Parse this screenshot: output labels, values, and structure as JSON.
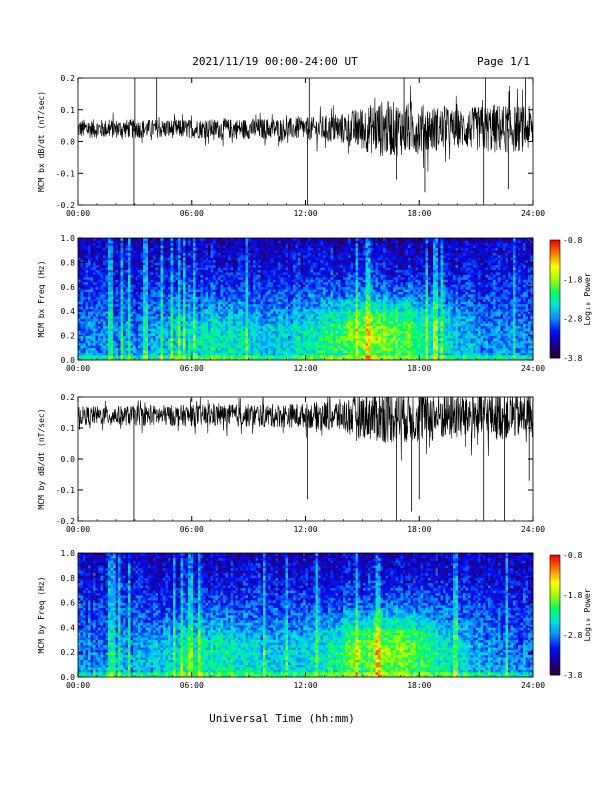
{
  "header": {
    "title": "2021/11/19  00:00-24:00 UT",
    "page": "Page 1/1"
  },
  "xlabel": "Universal Time (hh:mm)",
  "colors": {
    "trace": "#000000",
    "colormap": [
      "#2a0030",
      "#1a00a0",
      "#0010ff",
      "#0090ff",
      "#00e0e0",
      "#00ff60",
      "#a0ff00",
      "#ffff00",
      "#ff8000",
      "#ff0000"
    ]
  },
  "chart_data": [
    {
      "type": "line",
      "ylabel": "MCM bx dB/dt (nT/sec)",
      "xlim": [
        0,
        24
      ],
      "ylim": [
        -0.2,
        0.2
      ],
      "x_ticks": [
        "00:00",
        "06:00",
        "12:00",
        "18:00",
        "24:00"
      ],
      "y_ticks": [
        "0.2",
        "0.1",
        "0.0",
        "-0.1",
        "-0.2"
      ],
      "baseline": 0.04,
      "noise_envelope": [
        {
          "t": 0,
          "amp": 0.03
        },
        {
          "t": 6,
          "amp": 0.03
        },
        {
          "t": 12,
          "amp": 0.035
        },
        {
          "t": 14,
          "amp": 0.05
        },
        {
          "t": 16,
          "amp": 0.09
        },
        {
          "t": 18,
          "amp": 0.08
        },
        {
          "t": 20,
          "amp": 0.06
        },
        {
          "t": 22,
          "amp": 0.08
        },
        {
          "t": 24,
          "amp": 0.07
        }
      ],
      "spikes": [
        {
          "t": 2.95,
          "y": -0.2
        },
        {
          "t": 3.0,
          "y": 0.2
        },
        {
          "t": 4.15,
          "y": 0.2
        },
        {
          "t": 12.1,
          "y": -0.2
        },
        {
          "t": 12.2,
          "y": 0.2
        },
        {
          "t": 16.8,
          "y": -0.12
        },
        {
          "t": 17.2,
          "y": 0.2
        },
        {
          "t": 18.3,
          "y": -0.16
        },
        {
          "t": 21.4,
          "y": -0.2
        },
        {
          "t": 21.5,
          "y": 0.2
        },
        {
          "t": 22.7,
          "y": -0.15
        },
        {
          "t": 23.6,
          "y": 0.2
        }
      ]
    },
    {
      "type": "heatmap",
      "ylabel": "MCM bx Freq (Hz)",
      "xlim": [
        0,
        24
      ],
      "ylim": [
        0,
        1
      ],
      "x_ticks": [
        "00:00",
        "06:00",
        "12:00",
        "18:00",
        "24:00"
      ],
      "y_ticks": [
        "1.0",
        "0.8",
        "0.6",
        "0.4",
        "0.2",
        "0.0"
      ],
      "colorbar_label": "Log₁₀ Power",
      "colorbar_ticks": [
        "-0.8",
        "-1.8",
        "-2.8",
        "-3.8"
      ],
      "clim": [
        -3.8,
        -0.8
      ],
      "activity_centers": [
        {
          "t": 7.5,
          "f": 0.2,
          "strength": 0.45
        },
        {
          "t": 14.5,
          "f": 0.2,
          "strength": 0.55
        },
        {
          "t": 17.0,
          "f": 0.25,
          "strength": 0.6
        }
      ]
    },
    {
      "type": "line",
      "ylabel": "MCM by dB/dt (nT/sec)",
      "xlim": [
        0,
        24
      ],
      "ylim": [
        -0.2,
        0.2
      ],
      "x_ticks": [
        "00:00",
        "06:00",
        "12:00",
        "18:00",
        "24:00"
      ],
      "y_ticks": [
        "0.2",
        "0.1",
        "0.0",
        "-0.1",
        "-0.2"
      ],
      "baseline": 0.14,
      "noise_envelope": [
        {
          "t": 0,
          "amp": 0.03
        },
        {
          "t": 6,
          "amp": 0.035
        },
        {
          "t": 12,
          "amp": 0.04
        },
        {
          "t": 14,
          "amp": 0.055
        },
        {
          "t": 16,
          "amp": 0.09
        },
        {
          "t": 18,
          "amp": 0.09
        },
        {
          "t": 20,
          "amp": 0.08
        },
        {
          "t": 22,
          "amp": 0.08
        },
        {
          "t": 24,
          "amp": 0.07
        }
      ],
      "spikes": [
        {
          "t": 2.95,
          "y": -0.2
        },
        {
          "t": 12.1,
          "y": -0.13
        },
        {
          "t": 16.8,
          "y": -0.2
        },
        {
          "t": 17.6,
          "y": -0.17
        },
        {
          "t": 18.0,
          "y": -0.13
        },
        {
          "t": 21.4,
          "y": -0.2
        },
        {
          "t": 22.5,
          "y": -0.2
        },
        {
          "t": 23.8,
          "y": -0.07
        }
      ]
    },
    {
      "type": "heatmap",
      "ylabel": "MCM by Freq (Hz)",
      "xlim": [
        0,
        24
      ],
      "ylim": [
        0,
        1
      ],
      "x_ticks": [
        "00:00",
        "06:00",
        "12:00",
        "18:00",
        "24:00"
      ],
      "y_ticks": [
        "1.0",
        "0.8",
        "0.6",
        "0.4",
        "0.2",
        "0.0"
      ],
      "colorbar_label": "Log₁₀ Power",
      "colorbar_ticks": [
        "-0.8",
        "-1.8",
        "-2.8",
        "-3.8"
      ],
      "clim": [
        -3.8,
        -0.8
      ],
      "activity_centers": [
        {
          "t": 7.0,
          "f": 0.2,
          "strength": 0.5
        },
        {
          "t": 15.0,
          "f": 0.2,
          "strength": 0.6
        },
        {
          "t": 17.5,
          "f": 0.25,
          "strength": 0.55
        }
      ]
    }
  ]
}
